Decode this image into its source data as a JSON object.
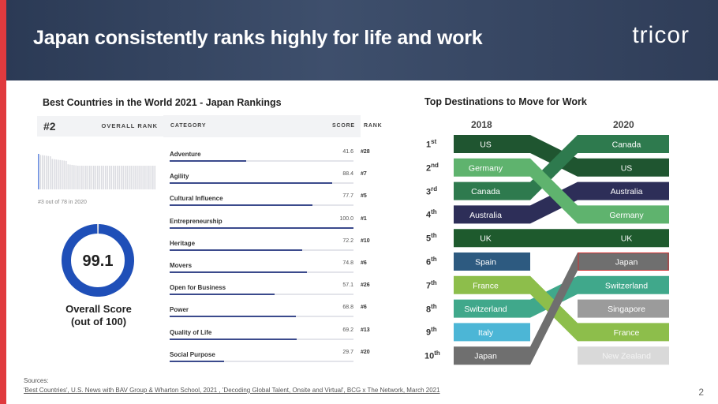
{
  "header": {
    "title": "Japan consistently ranks highly for life and work",
    "logo": "tricor"
  },
  "left": {
    "heading": "Best Countries in the World 2021 - Japan Rankings",
    "overall_rank": "#2",
    "overall_rank_label": "OVERALL RANK",
    "history_note": "#3 out of 78 in 2020",
    "overall_score": "99.1",
    "overall_score_value": 99.1,
    "overall_score_label": "Overall Score",
    "overall_score_sub": "(out of 100)",
    "table": {
      "headers": [
        "CATEGORY",
        "SCORE",
        "RANK"
      ],
      "rows": [
        {
          "category": "Adventure",
          "score": "41.6",
          "rank": "#28"
        },
        {
          "category": "Agility",
          "score": "88.4",
          "rank": "#7"
        },
        {
          "category": "Cultural Influence",
          "score": "77.7",
          "rank": "#5"
        },
        {
          "category": "Entrepreneurship",
          "score": "100.0",
          "rank": "#1"
        },
        {
          "category": "Heritage",
          "score": "72.2",
          "rank": "#10"
        },
        {
          "category": "Movers",
          "score": "74.8",
          "rank": "#6"
        },
        {
          "category": "Open for Business",
          "score": "57.1",
          "rank": "#26"
        },
        {
          "category": "Power",
          "score": "68.8",
          "rank": "#6"
        },
        {
          "category": "Quality of Life",
          "score": "69.2",
          "rank": "#13"
        },
        {
          "category": "Social Purpose",
          "score": "29.7",
          "rank": "#20"
        }
      ]
    }
  },
  "right": {
    "heading": "Top Destinations to Move for Work",
    "year_left": "2018",
    "year_right": "2020",
    "ordinals": [
      [
        "1",
        "st"
      ],
      [
        "2",
        "nd"
      ],
      [
        "3",
        "rd"
      ],
      [
        "4",
        "th"
      ],
      [
        "5",
        "th"
      ],
      [
        "6",
        "th"
      ],
      [
        "7",
        "th"
      ],
      [
        "8",
        "th"
      ],
      [
        "9",
        "th"
      ],
      [
        "10",
        "th"
      ]
    ],
    "countries": [
      {
        "name": "US",
        "r2018": 1,
        "r2020": 2,
        "color": "#1f5530"
      },
      {
        "name": "Germany",
        "r2018": 2,
        "r2020": 4,
        "color": "#5fb36e"
      },
      {
        "name": "Canada",
        "r2018": 3,
        "r2020": 1,
        "color": "#2e7a4e"
      },
      {
        "name": "Australia",
        "r2018": 4,
        "r2020": 3,
        "color": "#2d2e58"
      },
      {
        "name": "UK",
        "r2018": 5,
        "r2020": 5,
        "color": "#1e5a2d"
      },
      {
        "name": "Spain",
        "r2018": 6,
        "r2020": null,
        "color": "#2d5a80"
      },
      {
        "name": "France",
        "r2018": 7,
        "r2020": 9,
        "color": "#8dbe4b"
      },
      {
        "name": "Switzerland",
        "r2018": 8,
        "r2020": 7,
        "color": "#40a88b"
      },
      {
        "name": "Italy",
        "r2018": 9,
        "r2020": null,
        "color": "#4cb6d6"
      },
      {
        "name": "Japan",
        "r2018": 10,
        "r2020": 6,
        "color": "#6f6f6f"
      },
      {
        "name": "Singapore",
        "r2018": null,
        "r2020": 8,
        "color": "#9b9b9b"
      },
      {
        "name": "New Zealand",
        "r2018": null,
        "r2020": 10,
        "color": "#d9d9d9"
      }
    ],
    "highlight": "Japan",
    "highlight_color": "#d03030"
  },
  "footer": {
    "sources_label": "Sources:",
    "sources": "'Best Countries', U.S. News with BAV Group & Wharton School, 2021 , 'Decoding Global Talent, Onsite and Virtual', BCG x The Network, March 2021",
    "page": "2"
  }
}
